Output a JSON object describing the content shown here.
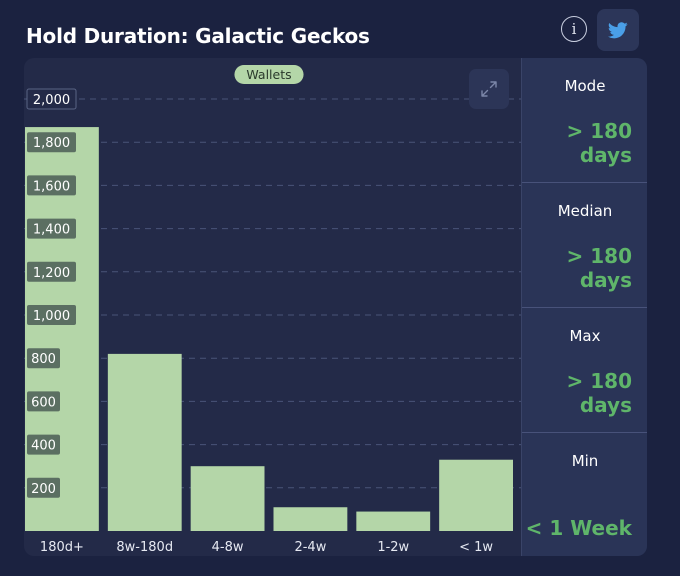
{
  "header": {
    "title": "Hold Duration: Galactic Geckos",
    "info_icon": "info-circle-icon",
    "share_icon": "twitter-bird-icon",
    "info_glyph": "i"
  },
  "chart_data": {
    "type": "bar",
    "categories": [
      "180d+",
      "8w-180d",
      "4-8w",
      "2-4w",
      "1-2w",
      "< 1w"
    ],
    "values": [
      1870,
      820,
      300,
      110,
      90,
      330
    ],
    "series": [
      {
        "name": "Wallets",
        "values": [
          1870,
          820,
          300,
          110,
          90,
          330
        ]
      }
    ],
    "yticks": [
      200,
      400,
      600,
      800,
      1000,
      1200,
      1400,
      1600,
      1800,
      2000
    ],
    "ytick_labels": [
      "200",
      "400",
      "600",
      "800",
      "1,000",
      "1,200",
      "1,400",
      "1,600",
      "1,800",
      "2,000"
    ],
    "ylim": [
      0,
      2000
    ],
    "legend": "top-center",
    "grid": true,
    "bar_color": "#b4d6a8",
    "title": "",
    "xlabel": "",
    "ylabel": ""
  },
  "chart_controls": {
    "expand_icon": "expand-arrows-icon"
  },
  "stats": [
    {
      "label": "Mode",
      "value_lines": [
        "> 180",
        "days"
      ]
    },
    {
      "label": "Median",
      "value_lines": [
        "> 180",
        "days"
      ]
    },
    {
      "label": "Max",
      "value_lines": [
        "> 180",
        "days"
      ]
    },
    {
      "label": "Min",
      "value_lines": [
        "< 1 Week"
      ]
    }
  ],
  "colors": {
    "background": "#1b2240",
    "card": "#232a48",
    "stats_panel": "#2a3457",
    "accent_value": "#5fb56a",
    "bar": "#b4d6a8",
    "twitter": "#4a9fe8"
  }
}
